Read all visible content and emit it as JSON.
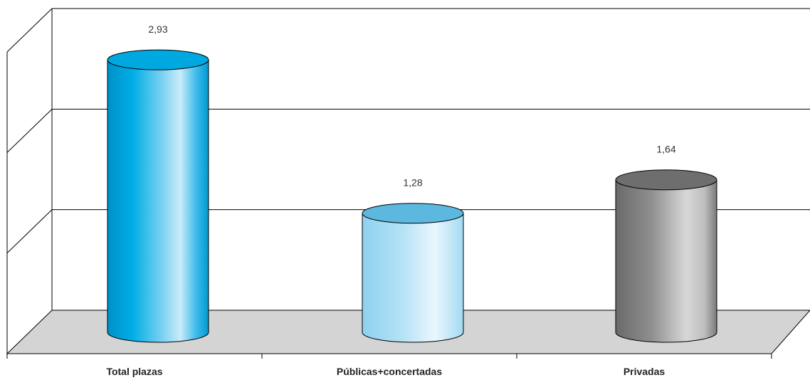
{
  "chart_data": {
    "type": "bar",
    "style": "3d-cylinder",
    "categories": [
      "Total plazas",
      "Públicas+concertadas",
      "Privadas"
    ],
    "values": [
      2.93,
      1.28,
      1.64
    ],
    "value_labels": [
      "2,93",
      "1,28",
      "1,64"
    ],
    "title": "",
    "xlabel": "",
    "ylabel": "",
    "ylim": [
      0,
      3
    ],
    "grid": true,
    "legend": "none",
    "colors": {
      "total": "#00a8e0",
      "publicas": "#a9dcf2",
      "privadas": "#8c8c8c",
      "floor": "#d4d4d4",
      "lines": "#000000"
    }
  }
}
